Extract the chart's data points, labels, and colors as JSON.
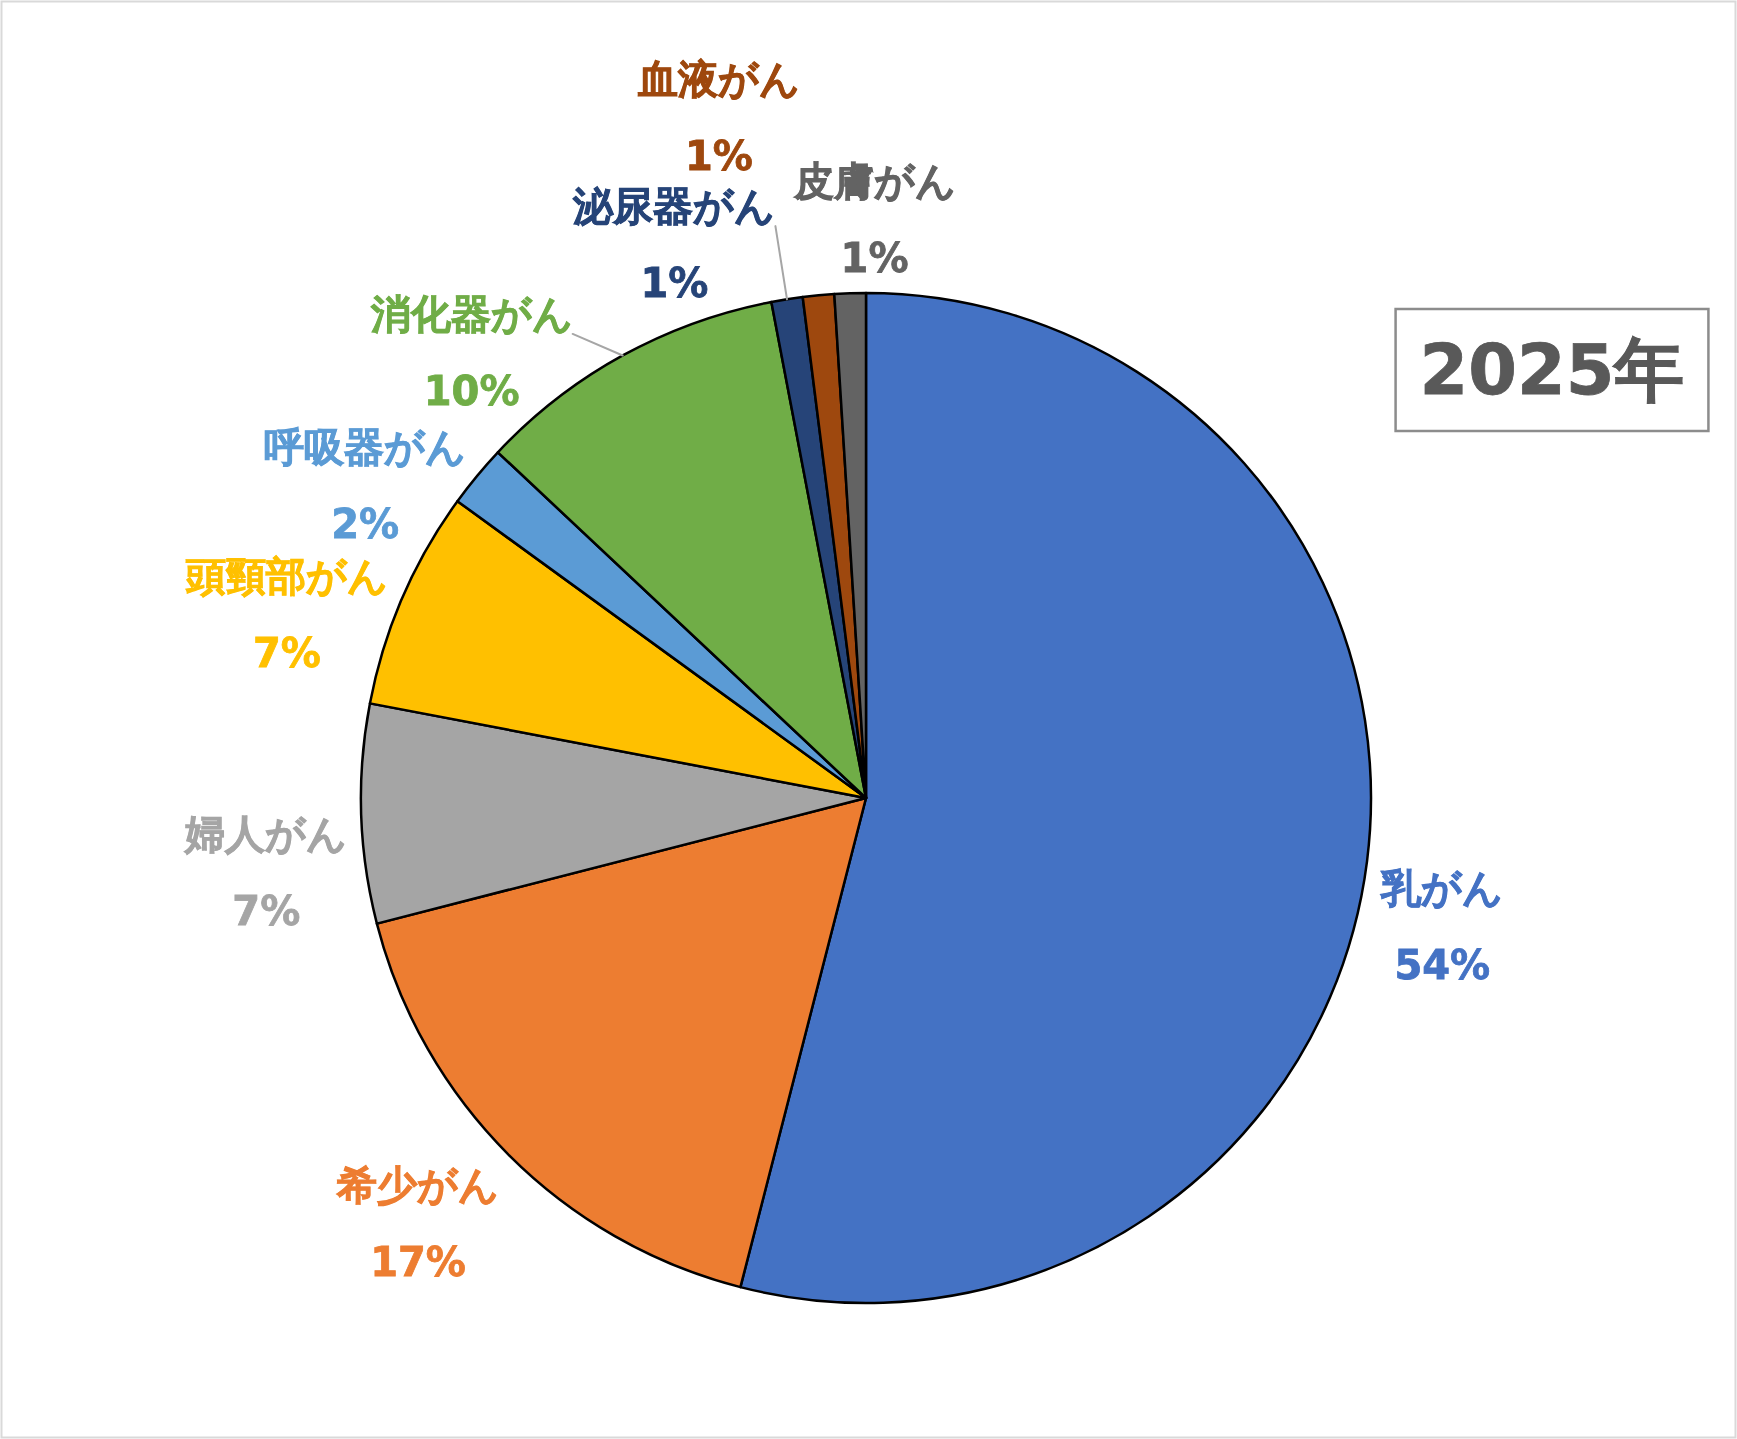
{
  "chart_data": {
    "type": "pie",
    "title": "2025年",
    "categories": [
      "乳がん",
      "希少がん",
      "婦人がん",
      "頭頸部がん",
      "呼吸器がん",
      "消化器がん",
      "泌尿器がん",
      "血液がん",
      "皮膚がん"
    ],
    "values": [
      54,
      17,
      7,
      7,
      2,
      10,
      1,
      1,
      1
    ],
    "colors": [
      "#4472c4",
      "#ed7d31",
      "#a5a5a5",
      "#ffc000",
      "#5b9bd5",
      "#70ad47",
      "#264478",
      "#9e480e",
      "#636363"
    ],
    "value_labels": [
      "54%",
      "17%",
      "7%",
      "7%",
      "2%",
      "10%",
      "1%",
      "1%",
      "1%"
    ]
  }
}
